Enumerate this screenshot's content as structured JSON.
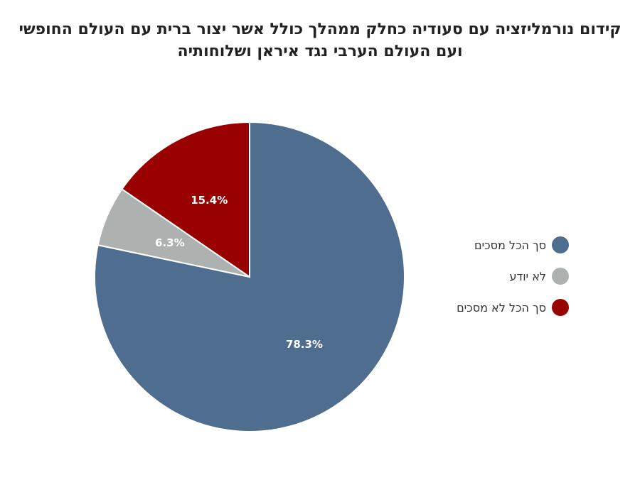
{
  "chart_data": {
    "type": "pie",
    "title_lines": [
      "קידום נורמליזציה עם סעודיה כחלק ממהלך כולל אשר יצור ברית עם העולם החופשי",
      "ועם העולם הערבי נגד איראן ושלוחותיה"
    ],
    "slices": [
      {
        "label": "סך הכל מסכים",
        "value": 78.3,
        "display": "78.3%",
        "color": "#4f6d8f"
      },
      {
        "label": "לא יודע",
        "value": 6.3,
        "display": "6.3%",
        "color": "#adb1b0"
      },
      {
        "label": "סך הכל לא מסכים",
        "value": 15.4,
        "display": "15.4%",
        "color": "#990000"
      }
    ],
    "start": "12 o'clock",
    "direction": "clockwise",
    "legend_position": "right"
  }
}
